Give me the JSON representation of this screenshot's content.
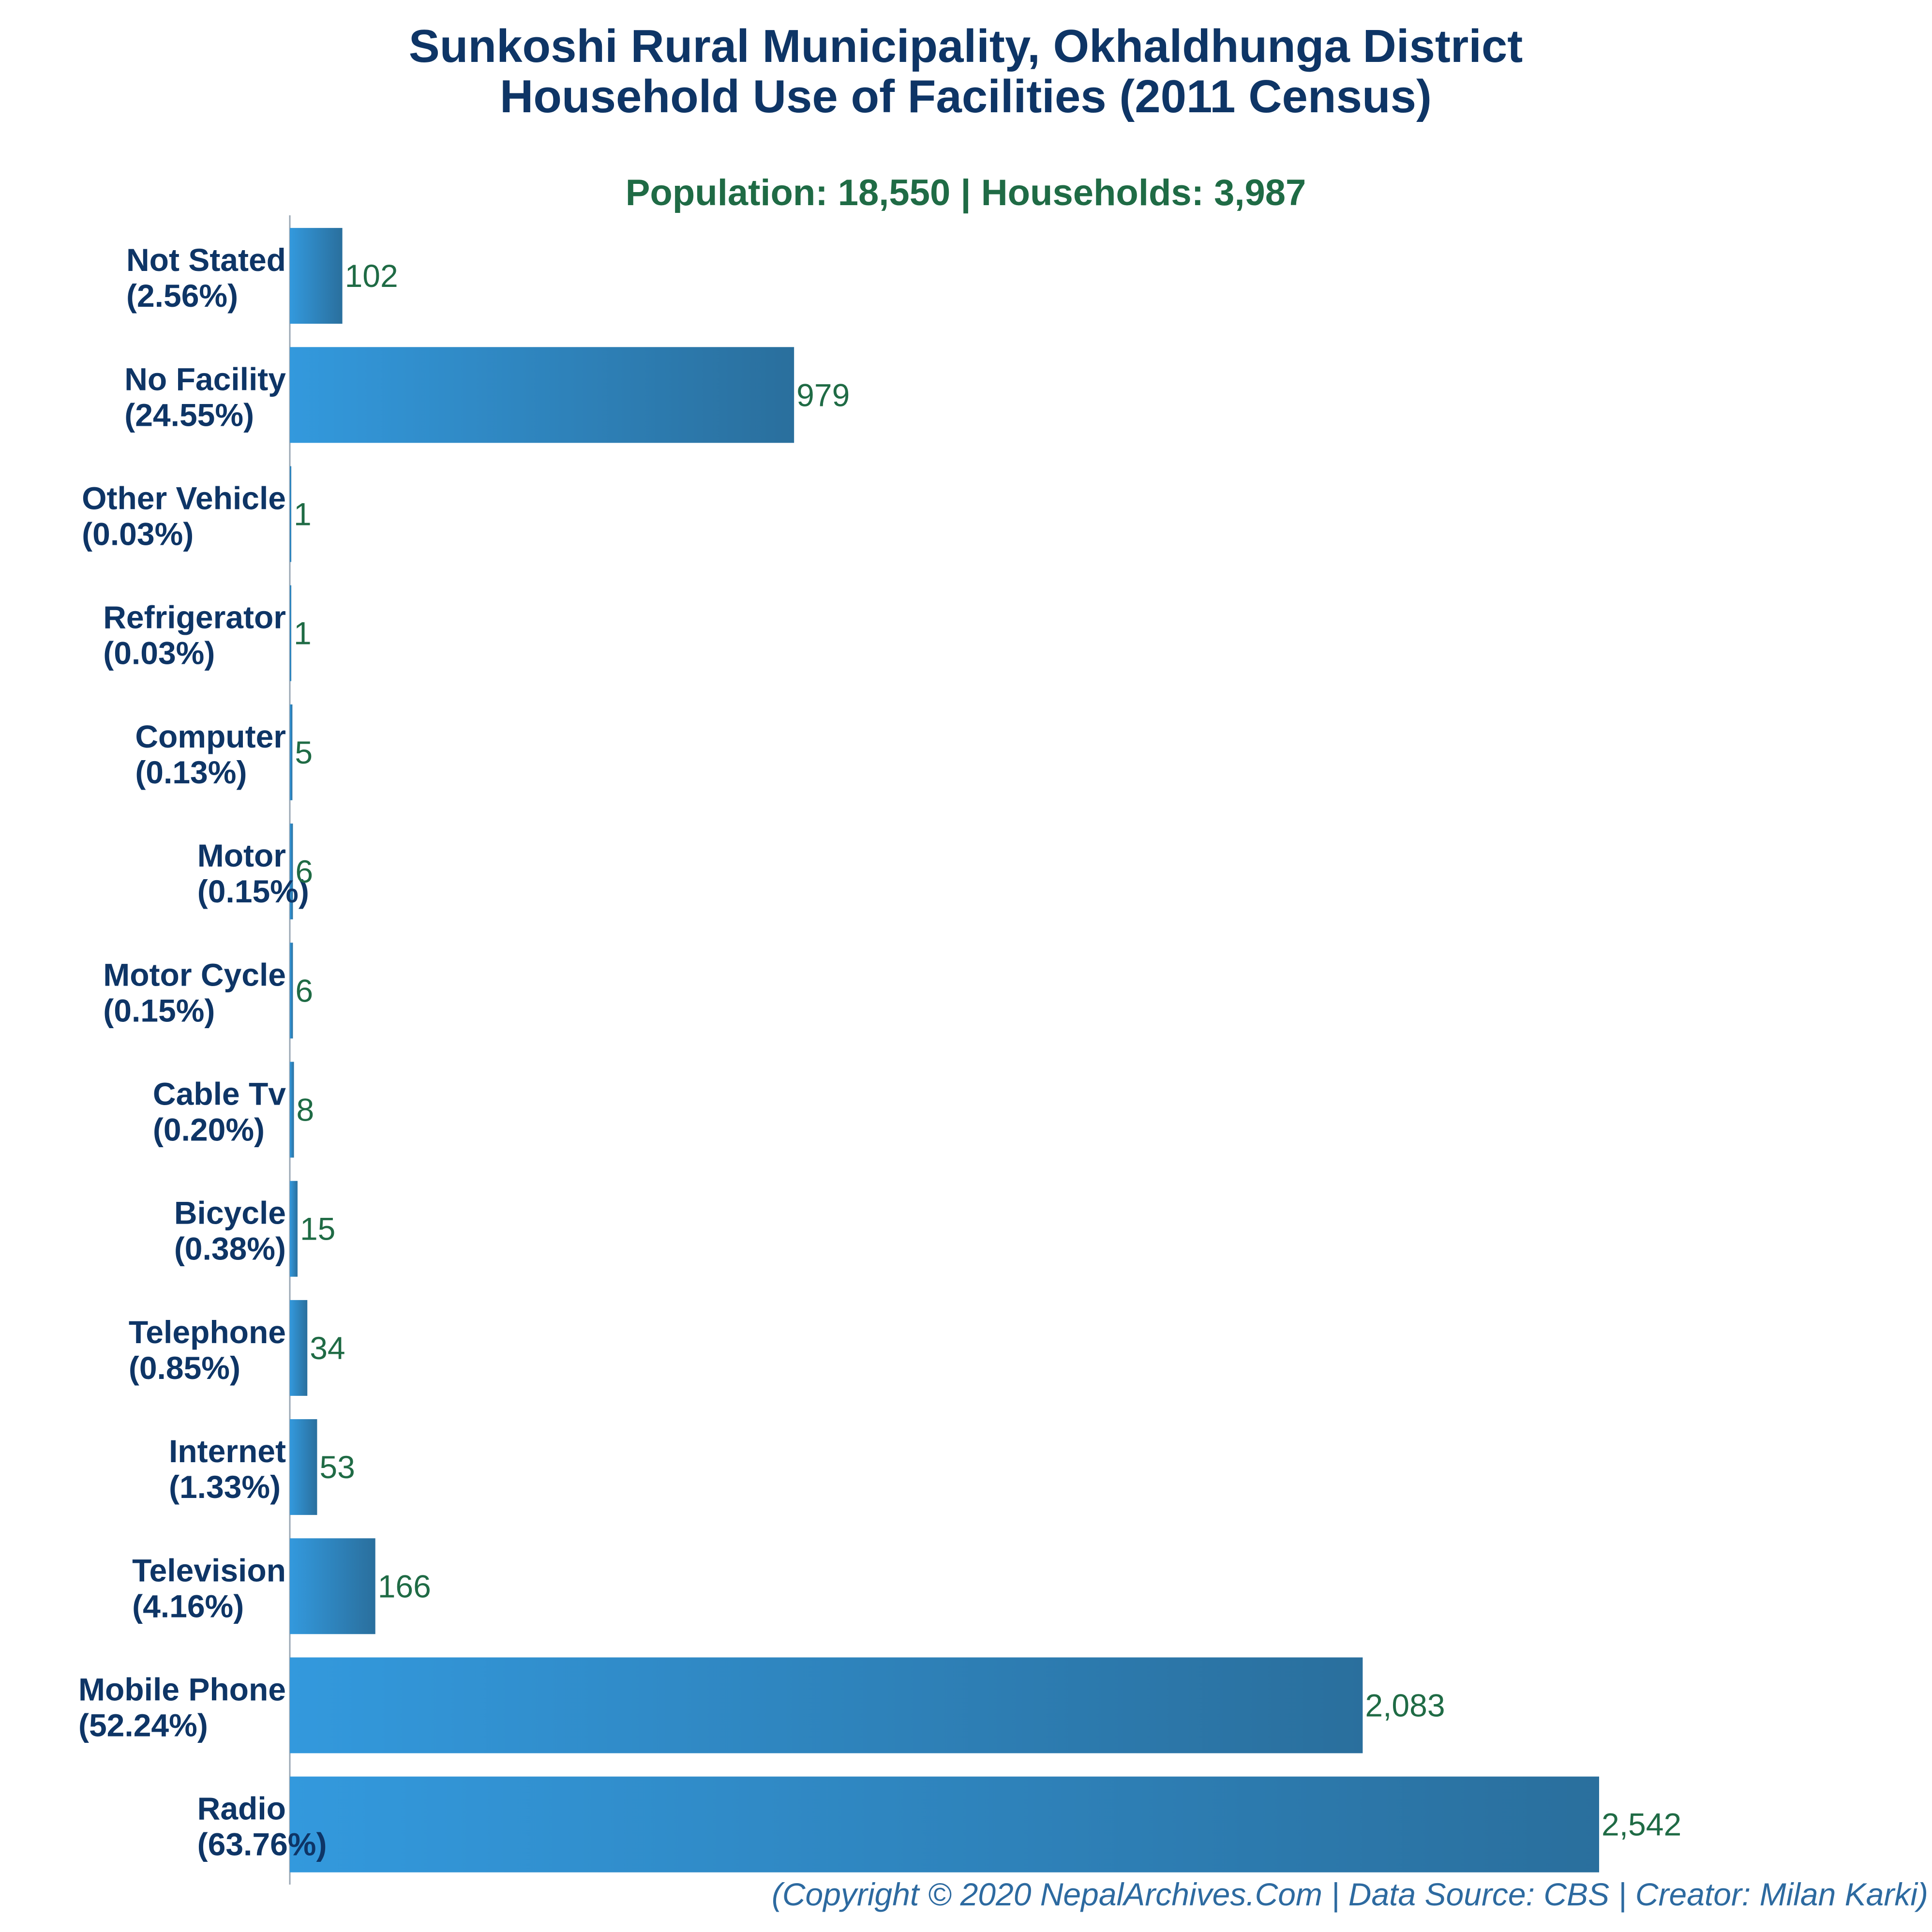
{
  "chart_data": {
    "type": "bar",
    "orientation": "horizontal",
    "title": "Sunkoshi Rural Municipality, Okhaldhunga District",
    "title_line2": "Household Use of Facilities (2011 Census)",
    "subtitle": "Population: 18,550 | Households: 3,987",
    "categories": [
      "Not Stated",
      "No Facility",
      "Other Vehicle",
      "Refrigerator",
      "Computer",
      "Motor",
      "Motor Cycle",
      "Cable Tv",
      "Bicycle",
      "Telephone",
      "Internet",
      "Television",
      "Mobile Phone",
      "Radio"
    ],
    "percent_labels": [
      "(2.56%)",
      "(24.55%)",
      "(0.03%)",
      "(0.03%)",
      "(0.13%)",
      "(0.15%)",
      "(0.15%)",
      "(0.20%)",
      "(0.38%)",
      "(0.85%)",
      "(1.33%)",
      "(4.16%)",
      "(52.24%)",
      "(63.76%)"
    ],
    "values": [
      102,
      979,
      1,
      1,
      5,
      6,
      6,
      8,
      15,
      34,
      53,
      166,
      2083,
      2542
    ],
    "value_labels": [
      "102",
      "979",
      "1",
      "1",
      "5",
      "6",
      "6",
      "8",
      "15",
      "34",
      "53",
      "166",
      "2,083",
      "2,542"
    ],
    "xlim": [
      0,
      2542
    ],
    "grid": false,
    "colors": {
      "bar_light": "#3399dd",
      "bar_dark": "#2a6f9d",
      "title": "#0e3566",
      "subtitle": "#1f6b45",
      "value": "#1f6b45",
      "footer": "#2d6aa0"
    }
  },
  "footer": "(Copyright © 2020 NepalArchives.Com | Data Source: CBS | Creator: Milan Karki)"
}
